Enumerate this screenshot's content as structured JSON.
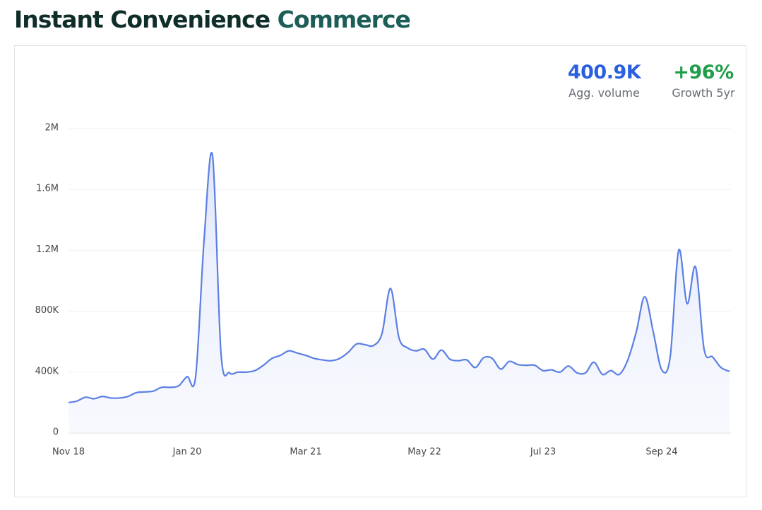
{
  "chart_data": {
    "type": "area",
    "title": "Instant Convenience",
    "title_highlight": "Commerce",
    "stats": [
      {
        "value": "400.9K",
        "label": "Agg. volume",
        "color": "#2a5fe0"
      },
      {
        "value": "+96%",
        "label": "Growth 5yr",
        "color": "#1f9d4a"
      }
    ],
    "categories": [
      "Nov 18",
      null,
      null,
      null,
      null,
      null,
      null,
      null,
      null,
      null,
      null,
      null,
      null,
      null,
      "Jan 20",
      null,
      null,
      null,
      null,
      null,
      null,
      null,
      null,
      null,
      null,
      null,
      null,
      null,
      "Mar 21",
      null,
      null,
      null,
      null,
      null,
      null,
      null,
      null,
      null,
      null,
      null,
      null,
      null,
      "May 22",
      null,
      null,
      null,
      null,
      null,
      null,
      null,
      null,
      null,
      null,
      null,
      null,
      null,
      "Jul 23",
      null,
      null,
      null,
      null,
      null,
      null,
      null,
      null,
      null,
      null,
      null,
      null,
      null,
      "Sep 24",
      null,
      null,
      null,
      null,
      null,
      null,
      null,
      null
    ],
    "values": [
      200000,
      210000,
      235000,
      225000,
      240000,
      230000,
      230000,
      240000,
      265000,
      270000,
      275000,
      300000,
      300000,
      310000,
      370000,
      370000,
      1270000,
      1820000,
      520000,
      395000,
      400000,
      400000,
      410000,
      445000,
      490000,
      510000,
      540000,
      525000,
      510000,
      490000,
      480000,
      475000,
      490000,
      530000,
      585000,
      580000,
      575000,
      655000,
      950000,
      625000,
      560000,
      540000,
      550000,
      485000,
      545000,
      485000,
      475000,
      480000,
      430000,
      495000,
      490000,
      420000,
      470000,
      450000,
      445000,
      445000,
      410000,
      415000,
      400000,
      440000,
      395000,
      395000,
      465000,
      385000,
      410000,
      385000,
      480000,
      665000,
      895000,
      665000,
      415000,
      500000,
      1200000,
      850000,
      1090000,
      550000,
      500000,
      430000,
      405000
    ],
    "color": "#5b7fe3",
    "ylim": [
      0,
      2000000
    ],
    "yticks": [
      0,
      {
        "value": 400000,
        "label": "400K"
      },
      {
        "value": 800000,
        "label": "800K"
      },
      {
        "value": 1200000,
        "label": "1.2M"
      },
      {
        "value": 1600000,
        "label": "1.6M"
      },
      {
        "value": 2000000,
        "label": "2M"
      }
    ],
    "grid": true
  }
}
